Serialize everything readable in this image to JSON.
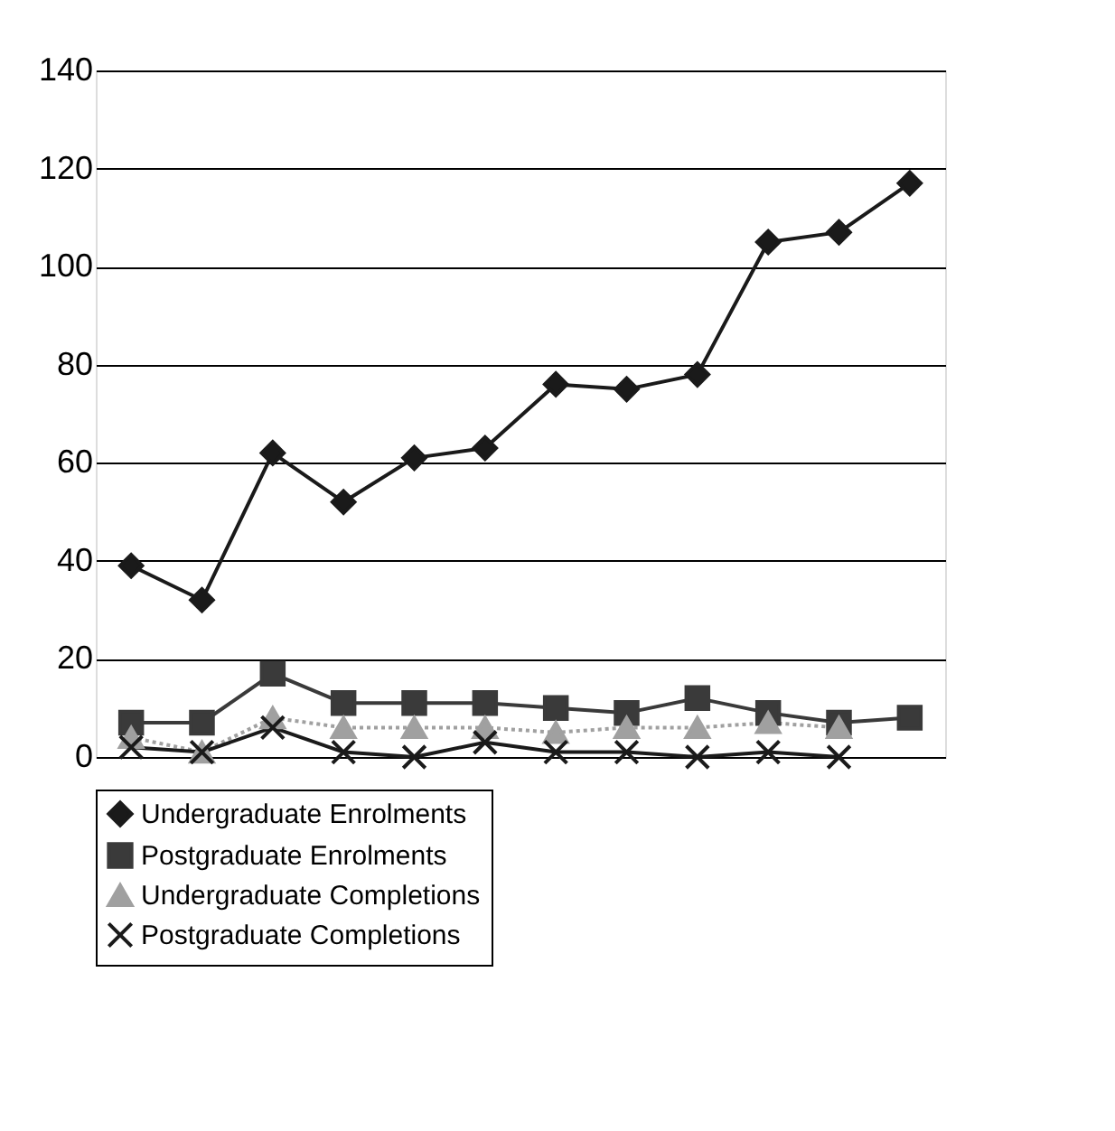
{
  "chart_data": {
    "type": "line",
    "categories": [
      null,
      null,
      null,
      null,
      null,
      null,
      null,
      null,
      null,
      null,
      null,
      null
    ],
    "series": [
      {
        "name": "Undergraduate Enrolments",
        "color": "#1a1a1a",
        "marker": "diamond",
        "line_style": "solid",
        "values": [
          39,
          32,
          62,
          52,
          61,
          63,
          76,
          75,
          78,
          105,
          107,
          117
        ]
      },
      {
        "name": "Postgraduate Enrolments",
        "color": "#3a3a3a",
        "marker": "square",
        "line_style": "solid",
        "values": [
          7,
          7,
          17,
          11,
          11,
          11,
          10,
          9,
          12,
          9,
          7,
          8
        ]
      },
      {
        "name": "Undergraduate Completions",
        "color": "#a0a0a0",
        "marker": "triangle",
        "line_style": "dotted",
        "values": [
          4,
          1,
          8,
          6,
          6,
          6,
          5,
          6,
          6,
          7,
          6,
          null
        ]
      },
      {
        "name": "Postgraduate Completions",
        "color": "#1a1a1a",
        "marker": "cross",
        "line_style": "solid",
        "values": [
          2,
          1,
          6,
          1,
          0,
          3,
          1,
          1,
          0,
          1,
          0,
          null
        ]
      }
    ],
    "ylim": [
      0,
      140
    ],
    "yticks": [
      0,
      20,
      40,
      60,
      80,
      100,
      120,
      140
    ],
    "grid": "y",
    "legend": "bottom",
    "tick_labels": "y"
  }
}
